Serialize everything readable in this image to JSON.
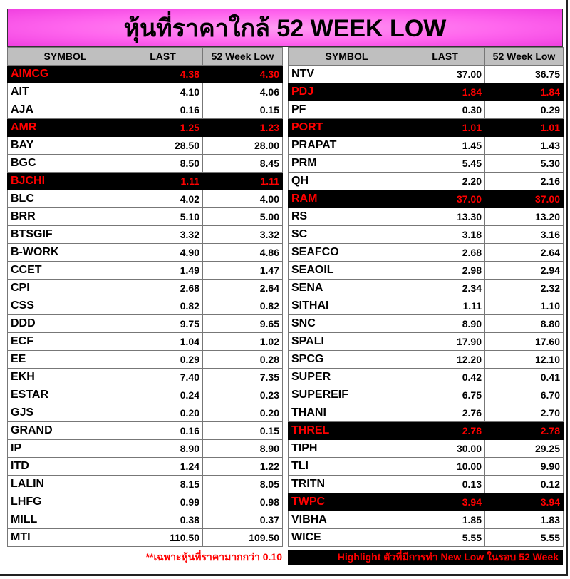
{
  "title": "หุ้นที่ราคาใกล้ 52 WEEK LOW",
  "columns": [
    "SYMBOL",
    "LAST",
    "52 Week Low"
  ],
  "colors": {
    "title_bg": "#ff66ee",
    "highlight_bg": "#000000",
    "highlight_text": "#ff0000",
    "header_bg": "#bfbfbf"
  },
  "left": [
    [
      "AIMCG",
      "4.38",
      "4.30",
      true
    ],
    [
      "AIT",
      "4.10",
      "4.06",
      false
    ],
    [
      "AJA",
      "0.16",
      "0.15",
      false
    ],
    [
      "AMR",
      "1.25",
      "1.23",
      true
    ],
    [
      "BAY",
      "28.50",
      "28.00",
      false
    ],
    [
      "BGC",
      "8.50",
      "8.45",
      false
    ],
    [
      "BJCHI",
      "1.11",
      "1.11",
      true
    ],
    [
      "BLC",
      "4.02",
      "4.00",
      false
    ],
    [
      "BRR",
      "5.10",
      "5.00",
      false
    ],
    [
      "BTSGIF",
      "3.32",
      "3.32",
      false
    ],
    [
      "B-WORK",
      "4.90",
      "4.86",
      false
    ],
    [
      "CCET",
      "1.49",
      "1.47",
      false
    ],
    [
      "CPI",
      "2.68",
      "2.64",
      false
    ],
    [
      "CSS",
      "0.82",
      "0.82",
      false
    ],
    [
      "DDD",
      "9.75",
      "9.65",
      false
    ],
    [
      "ECF",
      "1.04",
      "1.02",
      false
    ],
    [
      "EE",
      "0.29",
      "0.28",
      false
    ],
    [
      "EKH",
      "7.40",
      "7.35",
      false
    ],
    [
      "ESTAR",
      "0.24",
      "0.23",
      false
    ],
    [
      "GJS",
      "0.20",
      "0.20",
      false
    ],
    [
      "GRAND",
      "0.16",
      "0.15",
      false
    ],
    [
      "IP",
      "8.90",
      "8.90",
      false
    ],
    [
      "ITD",
      "1.24",
      "1.22",
      false
    ],
    [
      "LALIN",
      "8.15",
      "8.05",
      false
    ],
    [
      "LHFG",
      "0.99",
      "0.98",
      false
    ],
    [
      "MILL",
      "0.38",
      "0.37",
      false
    ],
    [
      "MTI",
      "110.50",
      "109.50",
      false
    ]
  ],
  "right": [
    [
      "NTV",
      "37.00",
      "36.75",
      false
    ],
    [
      "PDJ",
      "1.84",
      "1.84",
      true
    ],
    [
      "PF",
      "0.30",
      "0.29",
      false
    ],
    [
      "PORT",
      "1.01",
      "1.01",
      true
    ],
    [
      "PRAPAT",
      "1.45",
      "1.43",
      false
    ],
    [
      "PRM",
      "5.45",
      "5.30",
      false
    ],
    [
      "QH",
      "2.20",
      "2.16",
      false
    ],
    [
      "RAM",
      "37.00",
      "37.00",
      true
    ],
    [
      "RS",
      "13.30",
      "13.20",
      false
    ],
    [
      "SC",
      "3.18",
      "3.16",
      false
    ],
    [
      "SEAFCO",
      "2.68",
      "2.64",
      false
    ],
    [
      "SEAOIL",
      "2.98",
      "2.94",
      false
    ],
    [
      "SENA",
      "2.34",
      "2.32",
      false
    ],
    [
      "SITHAI",
      "1.11",
      "1.10",
      false
    ],
    [
      "SNC",
      "8.90",
      "8.80",
      false
    ],
    [
      "SPALI",
      "17.90",
      "17.60",
      false
    ],
    [
      "SPCG",
      "12.20",
      "12.10",
      false
    ],
    [
      "SUPER",
      "0.42",
      "0.41",
      false
    ],
    [
      "SUPEREIF",
      "6.75",
      "6.70",
      false
    ],
    [
      "THANI",
      "2.76",
      "2.70",
      false
    ],
    [
      "THREL",
      "2.78",
      "2.78",
      true
    ],
    [
      "TIPH",
      "30.00",
      "29.25",
      false
    ],
    [
      "TLI",
      "10.00",
      "9.90",
      false
    ],
    [
      "TRITN",
      "0.13",
      "0.12",
      false
    ],
    [
      "TWPC",
      "3.94",
      "3.94",
      true
    ],
    [
      "VIBHA",
      "1.85",
      "1.83",
      false
    ],
    [
      "WICE",
      "5.55",
      "5.55",
      false
    ]
  ],
  "notes": {
    "left": "**เฉพาะหุ้นที่ราคามากกว่า 0.10",
    "right": "Highlight ตัวที่มีการทำ New Low ในรอบ 52 Week"
  }
}
